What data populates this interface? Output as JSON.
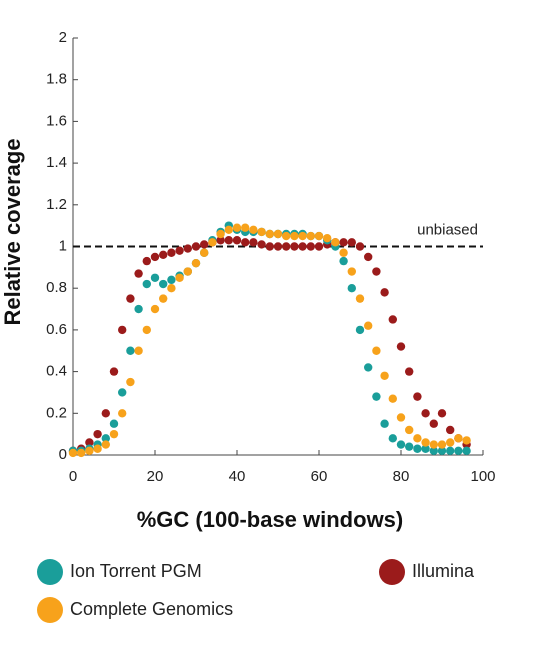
{
  "chart_data": {
    "type": "scatter",
    "x_label": "%GC (100-base windows)",
    "y_label": "Relative coverage",
    "x": [
      0,
      2,
      4,
      6,
      8,
      10,
      12,
      14,
      16,
      18,
      20,
      22,
      24,
      26,
      28,
      30,
      32,
      34,
      36,
      38,
      40,
      42,
      44,
      46,
      48,
      50,
      52,
      54,
      56,
      58,
      60,
      62,
      64,
      66,
      68,
      70,
      72,
      74,
      76,
      78,
      80,
      82,
      84,
      86,
      88,
      90,
      92,
      94,
      96
    ],
    "series": [
      {
        "name": "Ion Torrent PGM",
        "color": "#1a9e9a",
        "values": [
          0.02,
          0.02,
          0.03,
          0.05,
          0.08,
          0.15,
          0.3,
          0.5,
          0.7,
          0.82,
          0.85,
          0.82,
          0.84,
          0.86,
          0.88,
          0.92,
          0.97,
          1.03,
          1.07,
          1.1,
          1.08,
          1.07,
          1.07,
          1.07,
          1.06,
          1.06,
          1.06,
          1.06,
          1.06,
          1.05,
          1.05,
          1.03,
          1.0,
          0.93,
          0.8,
          0.6,
          0.42,
          0.28,
          0.15,
          0.08,
          0.05,
          0.04,
          0.03,
          0.03,
          0.02,
          0.02,
          0.02,
          0.02,
          0.02
        ]
      },
      {
        "name": "Illumina",
        "color": "#9b1b1b",
        "values": [
          0.02,
          0.03,
          0.06,
          0.1,
          0.2,
          0.4,
          0.6,
          0.75,
          0.87,
          0.93,
          0.95,
          0.96,
          0.97,
          0.98,
          0.99,
          1.0,
          1.01,
          1.02,
          1.03,
          1.03,
          1.03,
          1.02,
          1.02,
          1.01,
          1.0,
          1.0,
          1.0,
          1.0,
          1.0,
          1.0,
          1.0,
          1.01,
          1.02,
          1.02,
          1.02,
          1.0,
          0.95,
          0.88,
          0.78,
          0.65,
          0.52,
          0.4,
          0.28,
          0.2,
          0.15,
          0.2,
          0.12,
          0.08,
          0.05
        ]
      },
      {
        "name": "Complete Genomics",
        "color": "#f7a21b",
        "values": [
          0.01,
          0.01,
          0.02,
          0.03,
          0.05,
          0.1,
          0.2,
          0.35,
          0.5,
          0.6,
          0.7,
          0.75,
          0.8,
          0.85,
          0.88,
          0.92,
          0.97,
          1.02,
          1.06,
          1.08,
          1.09,
          1.09,
          1.08,
          1.07,
          1.06,
          1.06,
          1.05,
          1.05,
          1.05,
          1.05,
          1.05,
          1.04,
          1.02,
          0.97,
          0.88,
          0.75,
          0.62,
          0.5,
          0.38,
          0.27,
          0.18,
          0.12,
          0.08,
          0.06,
          0.05,
          0.05,
          0.06,
          0.08,
          0.07
        ]
      }
    ],
    "reference_line": {
      "value": 1,
      "label": "unbiased"
    },
    "xlim": [
      0,
      100
    ],
    "xticks": [
      0,
      20,
      40,
      60,
      80,
      100
    ],
    "ylim": [
      0,
      2
    ],
    "yticks": [
      0,
      0.2,
      0.4,
      0.6,
      0.8,
      1,
      1.2,
      1.4,
      1.6,
      1.8,
      2
    ],
    "legend": "bottom"
  }
}
